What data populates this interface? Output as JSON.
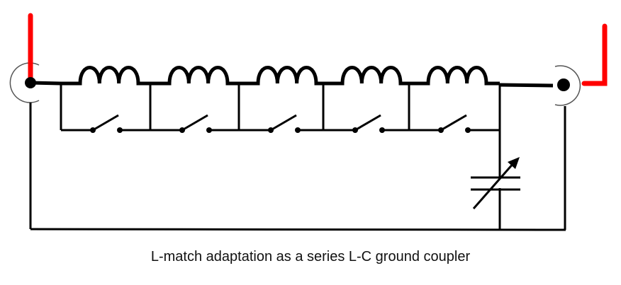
{
  "caption": "L-match adaptation as a series L-C ground coupler",
  "colors": {
    "wire": "#000000",
    "antenna": "#ff0000",
    "connector_ring": "#555555"
  },
  "components": {
    "inductor_sections": 5,
    "section_parts": [
      "inductor",
      "bypass-switch"
    ],
    "switch_state": "open",
    "capacitor": "variable",
    "connectors": [
      "left-coax-connector",
      "right-coax-connector"
    ]
  }
}
